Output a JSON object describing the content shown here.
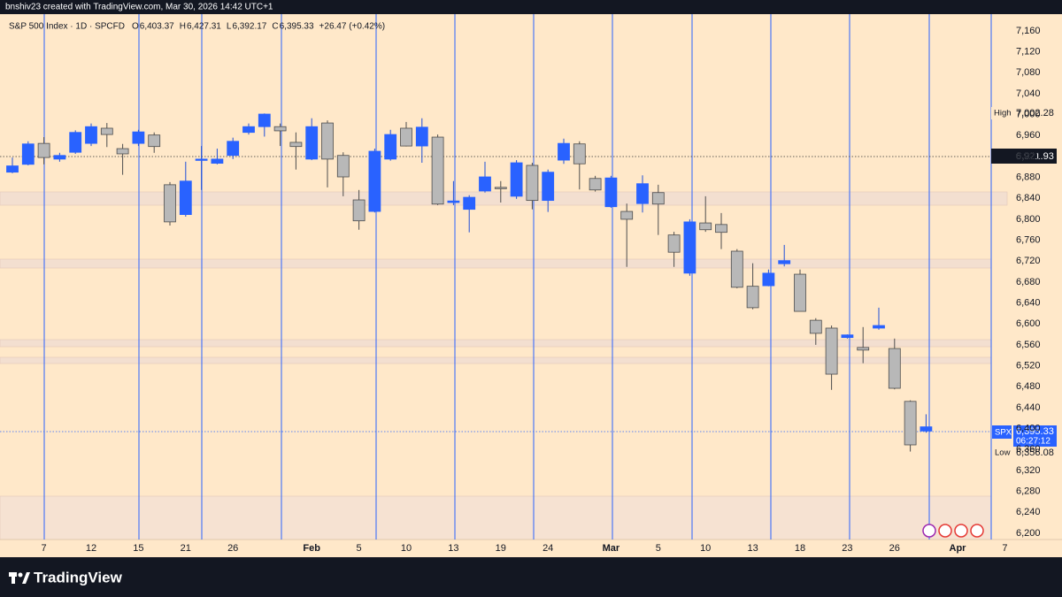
{
  "header": {
    "text": "bnshiv23 created with TradingView.com, Mar 30, 2026 14:42 UTC+1"
  },
  "footer": {
    "brand": "TradingView"
  },
  "chart_data": {
    "type": "candlestick",
    "title": "S&P 500 Index · 1D · SPCFD",
    "legend_items": [
      {
        "key": "O",
        "value": "6,403.37"
      },
      {
        "key": "H",
        "value": "6,427.31"
      },
      {
        "key": "L",
        "value": "6,392.17"
      },
      {
        "key": "C",
        "value": "6,395.33"
      }
    ],
    "change": "+26.47 (+0.42%)",
    "categories": [
      null,
      null,
      "7",
      null,
      null,
      "12",
      null,
      null,
      "15",
      null,
      null,
      "21",
      null,
      null,
      "26",
      null,
      null,
      null,
      null,
      "Feb",
      null,
      null,
      "5",
      null,
      null,
      "10",
      null,
      null,
      "13",
      null,
      null,
      "19",
      null,
      null,
      "24",
      null,
      null,
      null,
      "Mar",
      null,
      null,
      "5",
      null,
      null,
      "10",
      null,
      null,
      "13",
      null,
      null,
      "18",
      null,
      null,
      "23",
      null,
      null,
      "26",
      null,
      null,
      null,
      "Apr",
      null,
      null,
      "7"
    ],
    "open": [
      6890,
      6905,
      6945,
      6915,
      6928,
      6945,
      6974,
      6935,
      6945,
      6961,
      6866,
      6809,
      6913,
      6907,
      6922,
      6966,
      7001,
      6977,
      6947,
      6915,
      6984,
      6922,
      6837,
      6815,
      6915,
      6974,
      6976,
      6957,
      6832,
      6819,
      6854,
      6861,
      6844,
      6903,
      6836,
      6913,
      6944,
      6878,
      6824,
      6815,
      6830,
      6851,
      6770,
      6697,
      6793,
      6790,
      6739,
      6672,
      6673,
      6715,
      6695,
      6607,
      6592,
      6574,
      6555,
      6592,
      6553,
      6452,
      6403.37,
      null,
      null,
      null,
      null,
      null
    ],
    "high": [
      6918,
      6949,
      6957,
      6927,
      6970,
      6983,
      6984,
      6944,
      6971,
      6966,
      6871,
      6910,
      6940,
      6935,
      6956,
      6983,
      7002.28,
      6983,
      6966,
      6993,
      6989,
      6928,
      6856,
      6935,
      6971,
      6986,
      6993,
      6962,
      6873,
      6846,
      6910,
      6873,
      6913,
      6908,
      6895,
      6954,
      6949,
      6883,
      6883,
      6830,
      6884,
      6866,
      6776,
      6800,
      6844,
      6812,
      6743,
      6716,
      6704,
      6751,
      6704,
      6611,
      6597,
      6580,
      6594,
      6631,
      6572,
      6454,
      6427.31,
      null,
      null,
      null,
      null,
      null
    ],
    "low": [
      6888,
      6903,
      6905,
      6910,
      6925,
      6940,
      6938,
      6885,
      6940,
      6927,
      6788,
      6805,
      6856,
      6905,
      6915,
      6962,
      6958,
      6940,
      6895,
      6913,
      6861,
      6844,
      6780,
      6813,
      6912,
      6939,
      6908,
      6827,
      6827,
      6775,
      6851,
      6832,
      6839,
      6819,
      6814,
      6906,
      6857,
      6853,
      6822,
      6709,
      6813,
      6770,
      6709,
      6692,
      6776,
      6743,
      6668,
      6628,
      6672,
      6710,
      6624,
      6560,
      6474,
      6572,
      6525,
      6589,
      6475,
      6356.08,
      6392.17,
      null,
      null,
      null,
      null,
      null
    ],
    "close": [
      6902,
      6944,
      6918,
      6922,
      6966,
      6977,
      6962,
      6925,
      6967,
      6939,
      6795,
      6873,
      6915,
      6915,
      6949,
      6977,
      6977,
      6969,
      6939,
      6977,
      6915,
      6881,
      6797,
      6930,
      6962,
      6940,
      6940,
      6829,
      6835,
      6842,
      6881,
      6859,
      6908,
      6836,
      6890,
      6945,
      6906,
      6856,
      6879,
      6800,
      6868,
      6829,
      6737,
      6795,
      6780,
      6775,
      6670,
      6631,
      6697,
      6721,
      6624,
      6582,
      6504,
      6579,
      6550,
      6597,
      6477,
      6368.86,
      6395.33,
      null,
      null,
      null,
      null,
      null
    ],
    "up_color": "#2962ff",
    "down_color": "#b8b8b8",
    "color_mode": "previous_close",
    "ylim": [
      6188,
      7192
    ],
    "yticks": [
      {
        "value": 6200,
        "label": "6,200"
      },
      {
        "value": 6240,
        "label": "6,240"
      },
      {
        "value": 6280,
        "label": "6,280"
      },
      {
        "value": 6320,
        "label": "6,320"
      },
      {
        "value": 6360,
        "label": "6,360"
      },
      {
        "value": 6400,
        "label": "6,400"
      },
      {
        "value": 6440,
        "label": "6,440"
      },
      {
        "value": 6480,
        "label": "6,480"
      },
      {
        "value": 6520,
        "label": "6,520"
      },
      {
        "value": 6560,
        "label": "6,560"
      },
      {
        "value": 6600,
        "label": "6,600"
      },
      {
        "value": 6640,
        "label": "6,640"
      },
      {
        "value": 6680,
        "label": "6,680"
      },
      {
        "value": 6720,
        "label": "6,720"
      },
      {
        "value": 6760,
        "label": "6,760"
      },
      {
        "value": 6800,
        "label": "6,800"
      },
      {
        "value": 6840,
        "label": "6,840"
      },
      {
        "value": 6880,
        "label": "6,880"
      },
      {
        "value": 6920,
        "label": "6,920"
      },
      {
        "value": 6960,
        "label": "6,960"
      },
      {
        "value": 7000,
        "label": "7,000"
      },
      {
        "value": 7040,
        "label": "7,040"
      },
      {
        "value": 7080,
        "label": "7,080"
      },
      {
        "value": 7120,
        "label": "7,120"
      },
      {
        "value": 7160,
        "label": "7,160"
      }
    ],
    "grid": false,
    "price_labels": {
      "high_tag": "High",
      "high_value": "7,002.28",
      "marker_value": "6,921.93",
      "symbol": "SPX",
      "last_value": "6,395.33",
      "countdown": "06:27:12",
      "low_tag": "Low",
      "low_value": "6,356.08"
    }
  }
}
